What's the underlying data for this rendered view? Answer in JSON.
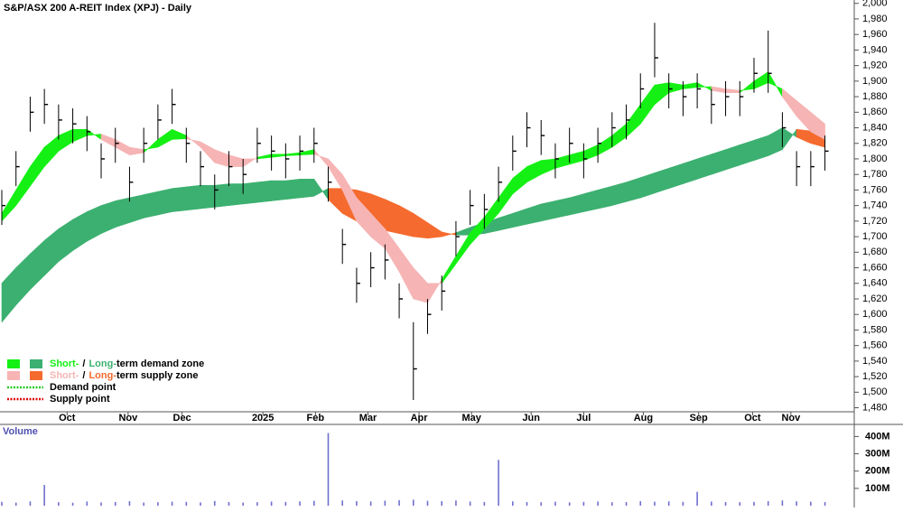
{
  "chart_data": {
    "type": "candlestick",
    "title": "S&P/ASX 200 A-REIT Index (XPJ) - Daily",
    "x": [
      0,
      5,
      10,
      15,
      20,
      25,
      30,
      35,
      40,
      45,
      50,
      55,
      60,
      65,
      70,
      75,
      80,
      85,
      90,
      95,
      100,
      105,
      110,
      115,
      120,
      125,
      130,
      135,
      140,
      145,
      150,
      155,
      160,
      165,
      170,
      175,
      180,
      185,
      190,
      195,
      200,
      205,
      210,
      215,
      220,
      225,
      230,
      235,
      240,
      245,
      250,
      255,
      260,
      265,
      270,
      275,
      280,
      285,
      290
    ],
    "high": [
      1760,
      1810,
      1880,
      1890,
      1870,
      1865,
      1855,
      1820,
      1840,
      1790,
      1840,
      1870,
      1890,
      1840,
      1810,
      1780,
      1810,
      1800,
      1840,
      1830,
      1820,
      1830,
      1840,
      1790,
      1710,
      1660,
      1680,
      1690,
      1640,
      1590,
      1620,
      1650,
      1720,
      1760,
      1755,
      1790,
      1830,
      1860,
      1850,
      1820,
      1840,
      1820,
      1840,
      1860,
      1870,
      1910,
      1975,
      1910,
      1900,
      1910,
      1890,
      1900,
      1900,
      1930,
      1965,
      1860,
      1810,
      1810,
      1830
    ],
    "low": [
      1715,
      1765,
      1835,
      1845,
      1825,
      1820,
      1810,
      1775,
      1795,
      1745,
      1795,
      1825,
      1845,
      1795,
      1765,
      1735,
      1765,
      1755,
      1795,
      1785,
      1775,
      1785,
      1795,
      1745,
      1665,
      1615,
      1635,
      1645,
      1595,
      1490,
      1575,
      1605,
      1675,
      1715,
      1710,
      1745,
      1785,
      1815,
      1805,
      1775,
      1795,
      1775,
      1795,
      1815,
      1825,
      1865,
      1905,
      1865,
      1855,
      1865,
      1845,
      1855,
      1855,
      1885,
      1885,
      1815,
      1765,
      1765,
      1785
    ],
    "close": [
      1740,
      1790,
      1860,
      1870,
      1850,
      1845,
      1835,
      1800,
      1820,
      1770,
      1820,
      1850,
      1870,
      1820,
      1790,
      1760,
      1790,
      1780,
      1820,
      1810,
      1800,
      1810,
      1820,
      1770,
      1690,
      1640,
      1660,
      1670,
      1620,
      1530,
      1600,
      1630,
      1700,
      1740,
      1735,
      1770,
      1810,
      1840,
      1830,
      1800,
      1820,
      1800,
      1820,
      1840,
      1850,
      1890,
      1930,
      1890,
      1880,
      1890,
      1870,
      1880,
      1880,
      1910,
      1910,
      1840,
      1790,
      1790,
      1810
    ],
    "short_fast": [
      1730,
      1760,
      1790,
      1815,
      1830,
      1838,
      1838,
      1825,
      1815,
      1805,
      1808,
      1825,
      1838,
      1830,
      1815,
      1795,
      1790,
      1790,
      1802,
      1806,
      1806,
      1808,
      1812,
      1790,
      1760,
      1720,
      1700,
      1685,
      1655,
      1620,
      1615,
      1645,
      1675,
      1705,
      1725,
      1750,
      1775,
      1790,
      1798,
      1800,
      1805,
      1810,
      1818,
      1830,
      1845,
      1870,
      1895,
      1898,
      1895,
      1898,
      1888,
      1885,
      1885,
      1900,
      1912,
      1880,
      1855,
      1835,
      1825
    ],
    "short_slow": [
      1720,
      1740,
      1765,
      1790,
      1810,
      1822,
      1830,
      1832,
      1825,
      1815,
      1812,
      1815,
      1825,
      1826,
      1822,
      1812,
      1805,
      1800,
      1800,
      1802,
      1804,
      1805,
      1806,
      1800,
      1780,
      1750,
      1730,
      1710,
      1685,
      1660,
      1640,
      1640,
      1665,
      1690,
      1710,
      1730,
      1755,
      1770,
      1780,
      1788,
      1793,
      1798,
      1805,
      1815,
      1828,
      1845,
      1870,
      1885,
      1890,
      1892,
      1893,
      1890,
      1888,
      1890,
      1898,
      1890,
      1875,
      1860,
      1845
    ],
    "long_fast": [
      1640,
      1660,
      1678,
      1695,
      1710,
      1722,
      1732,
      1740,
      1746,
      1750,
      1754,
      1758,
      1762,
      1764,
      1766,
      1766,
      1768,
      1768,
      1770,
      1772,
      1772,
      1774,
      1774,
      1748,
      1730,
      1720,
      1712,
      1708,
      1704,
      1700,
      1698,
      1700,
      1705,
      1712,
      1718,
      1724,
      1730,
      1736,
      1742,
      1746,
      1750,
      1755,
      1760,
      1765,
      1770,
      1776,
      1782,
      1788,
      1794,
      1800,
      1806,
      1812,
      1818,
      1824,
      1830,
      1840,
      1828,
      1820,
      1815
    ],
    "long_slow": [
      1590,
      1612,
      1632,
      1650,
      1668,
      1682,
      1694,
      1704,
      1712,
      1718,
      1724,
      1728,
      1732,
      1734,
      1736,
      1738,
      1740,
      1742,
      1744,
      1746,
      1748,
      1750,
      1752,
      1762,
      1762,
      1760,
      1755,
      1748,
      1740,
      1730,
      1718,
      1706,
      1702,
      1702,
      1704,
      1708,
      1712,
      1716,
      1720,
      1724,
      1728,
      1732,
      1736,
      1740,
      1745,
      1750,
      1756,
      1762,
      1768,
      1774,
      1780,
      1786,
      1792,
      1798,
      1804,
      1812,
      1838,
      1836,
      1832
    ],
    "colors": {
      "short_demand": "#14f014",
      "long_demand": "#3cb070",
      "short_supply": "#f6b4b4",
      "long_supply": "#f56a2e",
      "candle": "#000000"
    },
    "xlim": [
      0,
      300
    ],
    "xticks": [
      {
        "value": 23,
        "label": "Oct"
      },
      {
        "value": 44.5,
        "label": "Nov"
      },
      {
        "value": 63.5,
        "label": "Dec"
      },
      {
        "value": 92,
        "label": "2025"
      },
      {
        "value": 110.5,
        "label": "Feb"
      },
      {
        "value": 129,
        "label": "Mar"
      },
      {
        "value": 147,
        "label": "Apr"
      },
      {
        "value": 165.5,
        "label": "May"
      },
      {
        "value": 186.5,
        "label": "Jun"
      },
      {
        "value": 205,
        "label": "Jul"
      },
      {
        "value": 226,
        "label": "Aug"
      },
      {
        "value": 245.5,
        "label": "Sep"
      },
      {
        "value": 264.5,
        "label": "Oct"
      },
      {
        "value": 278,
        "label": "Nov"
      }
    ],
    "ylim": [
      1476,
      2002
    ],
    "yticks": [
      {
        "value": 1480,
        "label": "1,480"
      },
      {
        "value": 1500,
        "label": "1,500"
      },
      {
        "value": 1520,
        "label": "1,520"
      },
      {
        "value": 1540,
        "label": "1,540"
      },
      {
        "value": 1560,
        "label": "1,560"
      },
      {
        "value": 1580,
        "label": "1,580"
      },
      {
        "value": 1600,
        "label": "1,600"
      },
      {
        "value": 1620,
        "label": "1,620"
      },
      {
        "value": 1640,
        "label": "1,640"
      },
      {
        "value": 1660,
        "label": "1,660"
      },
      {
        "value": 1680,
        "label": "1,680"
      },
      {
        "value": 1700,
        "label": "1,700"
      },
      {
        "value": 1720,
        "label": "1,720"
      },
      {
        "value": 1740,
        "label": "1,740"
      },
      {
        "value": 1760,
        "label": "1,760"
      },
      {
        "value": 1780,
        "label": "1,780"
      },
      {
        "value": 1800,
        "label": "1,800"
      },
      {
        "value": 1820,
        "label": "1,820"
      },
      {
        "value": 1840,
        "label": "1,840"
      },
      {
        "value": 1860,
        "label": "1,860"
      },
      {
        "value": 1880,
        "label": "1,880"
      },
      {
        "value": 1900,
        "label": "1,900"
      },
      {
        "value": 1920,
        "label": "1,920"
      },
      {
        "value": 1940,
        "label": "1,940"
      },
      {
        "value": 1960,
        "label": "1,960"
      },
      {
        "value": 1980,
        "label": "1,980"
      },
      {
        "value": 2000,
        "label": "2,000"
      }
    ],
    "volume": {
      "label": "Volume",
      "color": "#7070d0",
      "values": [
        22000000,
        18000000,
        25000000,
        120000000,
        20000000,
        17000000,
        24000000,
        19000000,
        21000000,
        26000000,
        18000000,
        20000000,
        23000000,
        22000000,
        19000000,
        27000000,
        21000000,
        18000000,
        20000000,
        24000000,
        22000000,
        25000000,
        28000000,
        420000000,
        30000000,
        26000000,
        24000000,
        29000000,
        32000000,
        35000000,
        28000000,
        26000000,
        30000000,
        24000000,
        22000000,
        265000000,
        25000000,
        21000000,
        20000000,
        23000000,
        19000000,
        22000000,
        24000000,
        20000000,
        21000000,
        26000000,
        23000000,
        25000000,
        22000000,
        80000000,
        24000000,
        21000000,
        20000000,
        22000000,
        26000000,
        30000000,
        25000000,
        23000000,
        21000000
      ],
      "ylim": [
        0,
        470000000
      ],
      "yticks": [
        {
          "value": 100000000,
          "label": "100M"
        },
        {
          "value": 200000000,
          "label": "200M"
        },
        {
          "value": 300000000,
          "label": "300M"
        },
        {
          "value": 400000000,
          "label": "400M"
        }
      ]
    },
    "legend": {
      "zones": [
        {
          "short": "Short-",
          "sep": "/",
          "long": "Long-",
          "text": "term demand zone",
          "short_color": "#14f014",
          "long_color": "#3cb070"
        },
        {
          "short": "Short-",
          "sep": "/",
          "long": "Long-",
          "text": "term supply zone",
          "short_color": "#f6b4b4",
          "long_color": "#f56a2e"
        }
      ],
      "points": [
        {
          "text": "Demand point",
          "color": "#22cc22"
        },
        {
          "text": "Supply point",
          "color": "#dd0000"
        }
      ]
    }
  }
}
